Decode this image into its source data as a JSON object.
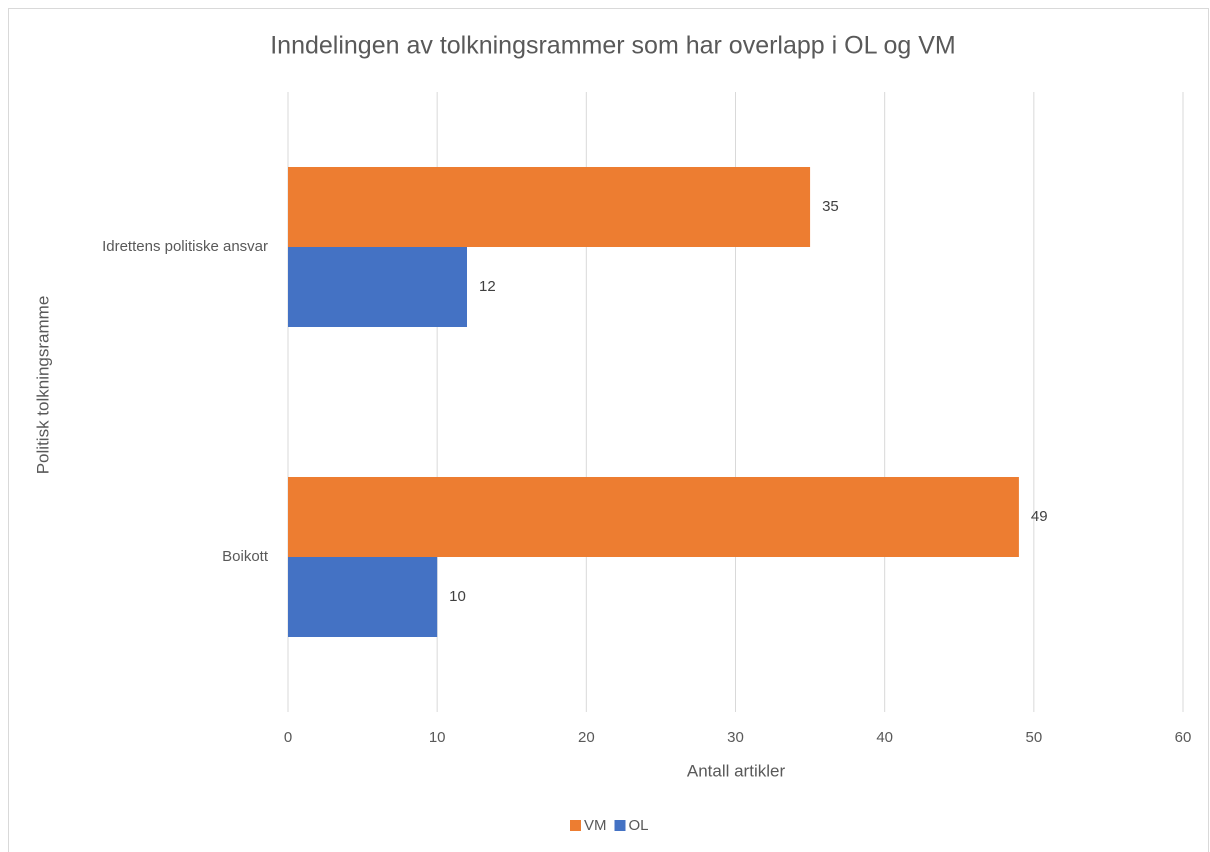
{
  "chart_data": {
    "type": "hbar",
    "title": "Inndelingen av tolkningsrammer som har overlapp i OL og VM",
    "x_label": "Antall artikler",
    "y_label": "Politisk tolkningsramme",
    "categories": [
      "Idrettens politiske ansvar",
      "Boikott"
    ],
    "series": [
      {
        "name": "VM",
        "color": "#ED7D31",
        "values": [
          35,
          49
        ]
      },
      {
        "name": "OL",
        "color": "#4472C4",
        "values": [
          12,
          10
        ]
      }
    ],
    "xlim": [
      0,
      60
    ],
    "xticks": [
      0,
      10,
      20,
      30,
      40,
      50,
      60
    ],
    "grid": true,
    "legend": "bottom"
  }
}
